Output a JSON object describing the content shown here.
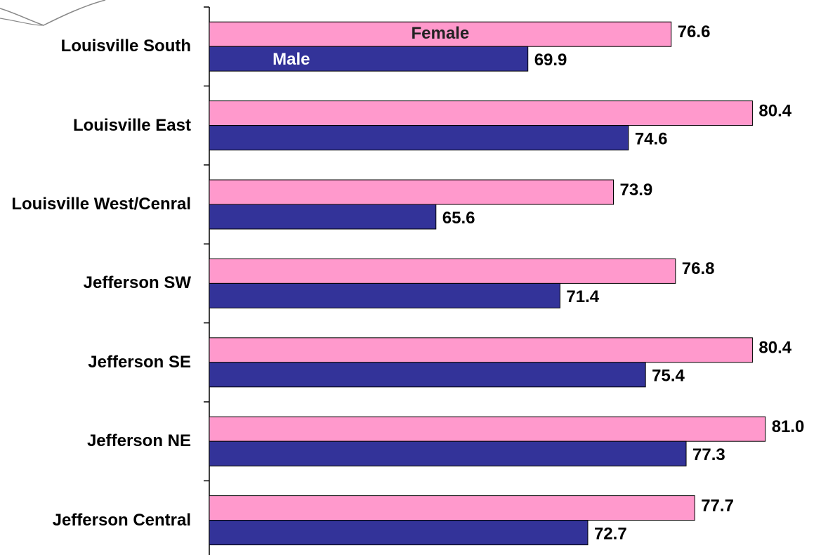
{
  "chart_data": {
    "type": "hbar",
    "categories": [
      "Louisville South",
      "Louisville East",
      "Louisville West/Cenral",
      "Jefferson SW",
      "Jefferson SE",
      "Jefferson NE",
      "Jefferson Central"
    ],
    "series": [
      {
        "name": "Female",
        "color": "#ff99cc",
        "values": [
          76.6,
          80.4,
          73.9,
          76.8,
          80.4,
          81.0,
          77.7
        ],
        "value_labels": [
          "76.6",
          "80.4",
          "73.9",
          "76.8",
          "80.4",
          "81.0",
          "77.7"
        ]
      },
      {
        "name": "Male",
        "color": "#333399",
        "values": [
          69.9,
          74.6,
          65.6,
          71.4,
          75.4,
          77.3,
          72.7
        ]
      }
    ],
    "xlim": [
      55,
      83.9
    ]
  }
}
